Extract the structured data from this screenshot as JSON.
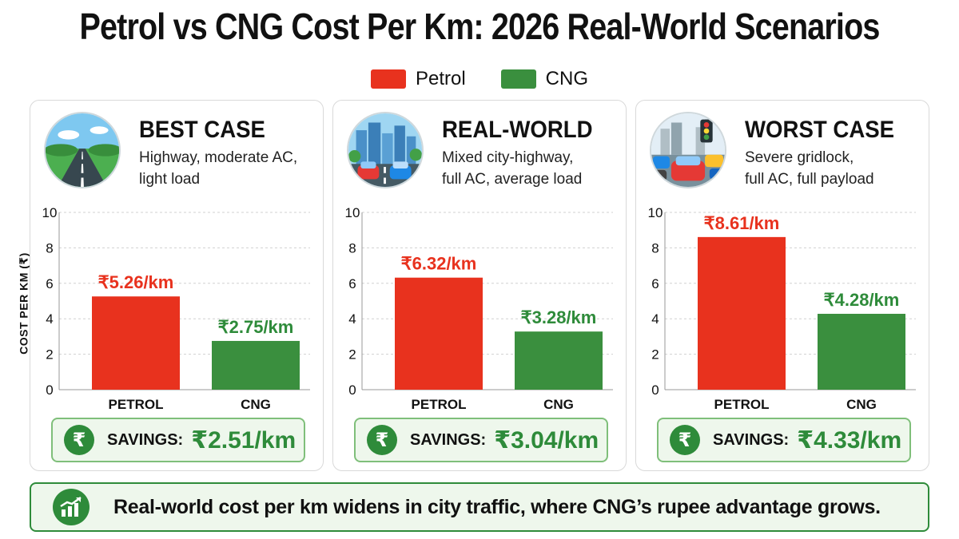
{
  "title": "Petrol vs CNG Cost Per Km: 2026 Real-World Scenarios",
  "legend": [
    {
      "label": "Petrol",
      "color": "#e8321e"
    },
    {
      "label": "CNG",
      "color": "#3a8f3e"
    }
  ],
  "y_axis_title": "COST PER KM (₹)",
  "panels": [
    {
      "title": "BEST CASE",
      "desc_line1": "Highway, moderate AC,",
      "desc_line2": "light load",
      "icon": "highway-icon",
      "savings_label": "SAVINGS:",
      "savings_value": "₹2.51/km"
    },
    {
      "title": "REAL-WORLD",
      "desc_line1": "Mixed city-highway,",
      "desc_line2": "full AC, average load",
      "icon": "city-traffic-icon",
      "savings_label": "SAVINGS:",
      "savings_value": "₹3.04/km"
    },
    {
      "title": "WORST CASE",
      "desc_line1": "Severe gridlock,",
      "desc_line2": "full AC, full payload",
      "icon": "gridlock-icon",
      "savings_label": "SAVINGS:",
      "savings_value": "₹4.33/km"
    }
  ],
  "rupee_symbol": "₹",
  "footer_text": "Real-world cost per km widens in city traffic, where CNG’s rupee advantage grows.",
  "footer_icon": "growth-chart-icon",
  "chart_data": [
    {
      "type": "bar",
      "categories": [
        "PETROL",
        "CNG"
      ],
      "values": [
        5.26,
        2.75
      ],
      "data_labels": [
        "₹5.26/km",
        "₹2.75/km"
      ],
      "colors": [
        "#e8321e",
        "#3a8f3e"
      ],
      "label_colors": [
        "#e8321e",
        "#2e8b3a"
      ],
      "ylabel": "COST PER KM (₹)",
      "yticks": [
        0,
        2,
        4,
        6,
        8,
        10
      ],
      "ylim": [
        0,
        10
      ],
      "grid": true
    },
    {
      "type": "bar",
      "categories": [
        "PETROL",
        "CNG"
      ],
      "values": [
        6.32,
        3.28
      ],
      "data_labels": [
        "₹6.32/km",
        "₹3.28/km"
      ],
      "colors": [
        "#e8321e",
        "#3a8f3e"
      ],
      "label_colors": [
        "#e8321e",
        "#2e8b3a"
      ],
      "yticks": [
        0,
        2,
        4,
        6,
        8,
        10
      ],
      "ylim": [
        0,
        10
      ],
      "grid": true
    },
    {
      "type": "bar",
      "categories": [
        "PETROL",
        "CNG"
      ],
      "values": [
        8.61,
        4.28
      ],
      "data_labels": [
        "₹8.61/km",
        "₹4.28/km"
      ],
      "colors": [
        "#e8321e",
        "#3a8f3e"
      ],
      "label_colors": [
        "#e8321e",
        "#2e8b3a"
      ],
      "yticks": [
        0,
        2,
        4,
        6,
        8,
        10
      ],
      "ylim": [
        0,
        10
      ],
      "grid": true
    }
  ]
}
